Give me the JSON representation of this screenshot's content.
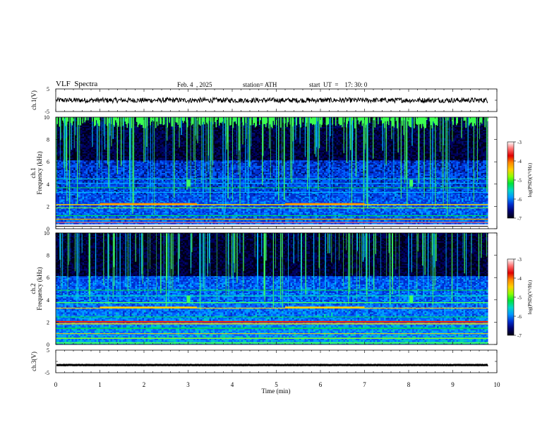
{
  "header": {
    "title": "VLF  Spectra",
    "date": "Feb. 4  , 2025",
    "station": "station= ATH",
    "start": "start  UT  =    17: 30: 0"
  },
  "colorbar": {
    "label": "log(PSD)(V²/Hz)",
    "ticks": [
      "-3",
      "-4",
      "-5",
      "-6",
      "-7"
    ],
    "colors": [
      "#ffffff",
      "#ff6f6f",
      "#e00000",
      "#ff8a00",
      "#ffd000",
      "#8cff00",
      "#00e33a",
      "#00d7c8",
      "#0096ff",
      "#0030d0",
      "#00006e",
      "#000010"
    ]
  },
  "chart_data": [
    {
      "type": "line",
      "panel": "ch1-waveform",
      "ylabel": "ch.1(V)",
      "ylim": [
        -5,
        5
      ],
      "yticks": [
        "5",
        "-5"
      ],
      "xlim": [
        0,
        10
      ],
      "series": [
        {
          "x": [
            0,
            9.8
          ],
          "y": [
            0,
            0
          ]
        }
      ],
      "trace_color": "#000000"
    },
    {
      "type": "heatmap",
      "panel": "ch1-spectrogram",
      "ylabel": "ch.1 Frequency (kHz)",
      "ylim": [
        0,
        10
      ],
      "yticks": [
        "0",
        "2",
        "4",
        "6",
        "8",
        "10"
      ],
      "xlim": [
        0,
        9.8
      ],
      "colorbar_range": [
        -7,
        -3
      ]
    },
    {
      "type": "heatmap",
      "panel": "ch2-spectrogram",
      "ylabel": "ch.2 Frequency (kHz)",
      "ylim": [
        0,
        10
      ],
      "yticks": [
        "0",
        "2",
        "4",
        "6",
        "8",
        "10"
      ],
      "xlim": [
        0,
        9.8
      ],
      "colorbar_range": [
        -7,
        -3
      ]
    },
    {
      "type": "line",
      "panel": "ch3-waveform",
      "ylabel": "ch.3(V)",
      "ylim": [
        -5,
        5
      ],
      "yticks": [
        "5",
        "-5"
      ],
      "xlim": [
        0,
        10
      ],
      "series": [
        {
          "x": [
            0,
            9.8
          ],
          "y": [
            -1.6,
            -1.6
          ]
        }
      ],
      "trace_color": "#000000"
    }
  ],
  "xaxis": {
    "label": "Time  (min)",
    "ticks": [
      "0",
      "1",
      "2",
      "3",
      "4",
      "5",
      "6",
      "7",
      "8",
      "9",
      "10"
    ],
    "xlim": [
      0,
      10
    ]
  }
}
